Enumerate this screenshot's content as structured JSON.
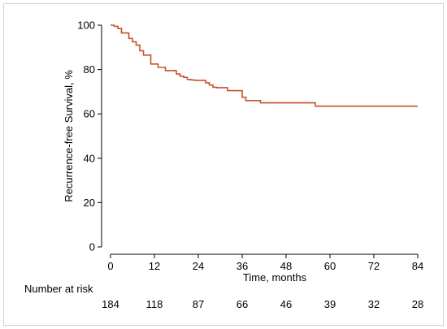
{
  "chart_data": {
    "type": "line",
    "title": "",
    "xlabel": "Time, months",
    "ylabel": "Recurrence-free Survival, %",
    "xlim": [
      0,
      84
    ],
    "ylim": [
      0,
      100
    ],
    "xticks": [
      0,
      12,
      24,
      36,
      48,
      60,
      72,
      84
    ],
    "yticks": [
      0,
      20,
      40,
      60,
      80,
      100
    ],
    "grid": false,
    "line_color": "#c8502a",
    "series": [
      {
        "step": "post",
        "x": [
          0,
          1,
          2,
          3,
          5,
          6,
          7,
          8,
          9,
          11,
          13,
          15,
          18,
          19,
          20,
          21,
          22,
          23,
          26,
          27,
          28,
          29,
          32,
          36,
          37,
          41,
          56,
          84
        ],
        "y": [
          100,
          99.5,
          98.5,
          96.5,
          94,
          92.5,
          91,
          88.5,
          86.5,
          82.5,
          81,
          79.5,
          78,
          77,
          76.5,
          75.5,
          75.3,
          75.1,
          74,
          73,
          72,
          71.8,
          70.5,
          67.5,
          66,
          65,
          63.5,
          63.5
        ]
      }
    ],
    "risk_table": {
      "label": "Number at risk",
      "times": [
        0,
        12,
        24,
        36,
        48,
        60,
        72,
        84
      ],
      "counts": [
        "184",
        "118",
        "87",
        "66",
        "46",
        "39",
        "32",
        "28"
      ]
    }
  }
}
